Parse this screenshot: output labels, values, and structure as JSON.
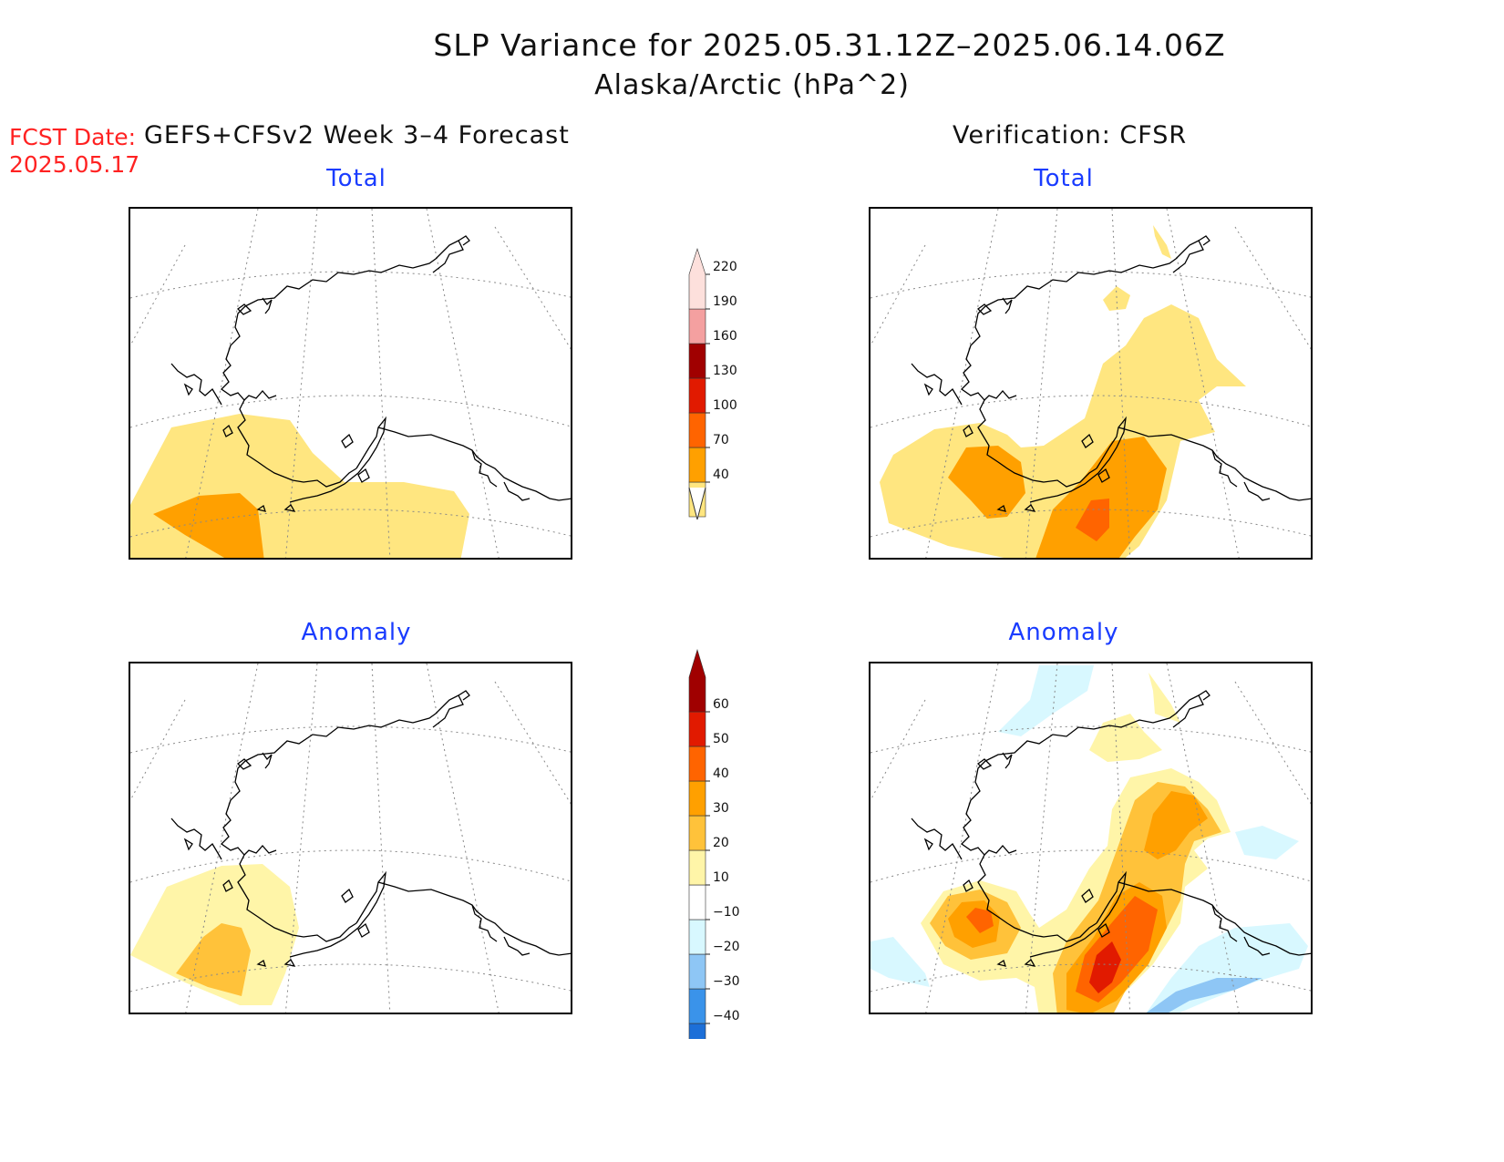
{
  "header": {
    "title": "SLP Variance for 2025.05.31.12Z–2025.06.14.06Z",
    "subtitle": "Alaska/Arctic (hPa^2)",
    "fcst_label": "FCST Date:",
    "fcst_date": "2025.05.17",
    "left_heading": "GEFS+CFSv2 Week 3–4 Forecast",
    "right_heading": "Verification: CFSR"
  },
  "panels": {
    "forecast_total": {
      "title": "Total"
    },
    "verif_total": {
      "title": "Total"
    },
    "forecast_anomaly": {
      "title": "Anomaly"
    },
    "verif_anomaly": {
      "title": "Anomaly"
    }
  },
  "colorbars": {
    "total": {
      "levels": [
        "40",
        "70",
        "100",
        "130",
        "160",
        "190",
        "220"
      ],
      "colors": [
        "#ffe680",
        "#ffa000",
        "#ff6400",
        "#e11a00",
        "#a00000",
        "#f4a0a0",
        "#fde0dc"
      ]
    },
    "anomaly": {
      "levels": [
        "−40",
        "−30",
        "−20",
        "−10",
        "10",
        "20",
        "30",
        "40",
        "50",
        "60"
      ],
      "colors": [
        "#1c6fd8",
        "#3a93ea",
        "#8ec6f5",
        "#d8f8ff",
        "#ffffff",
        "#fff5a8",
        "#ffc23a",
        "#ffa000",
        "#ff6400",
        "#e11a00",
        "#a00000"
      ]
    }
  }
}
